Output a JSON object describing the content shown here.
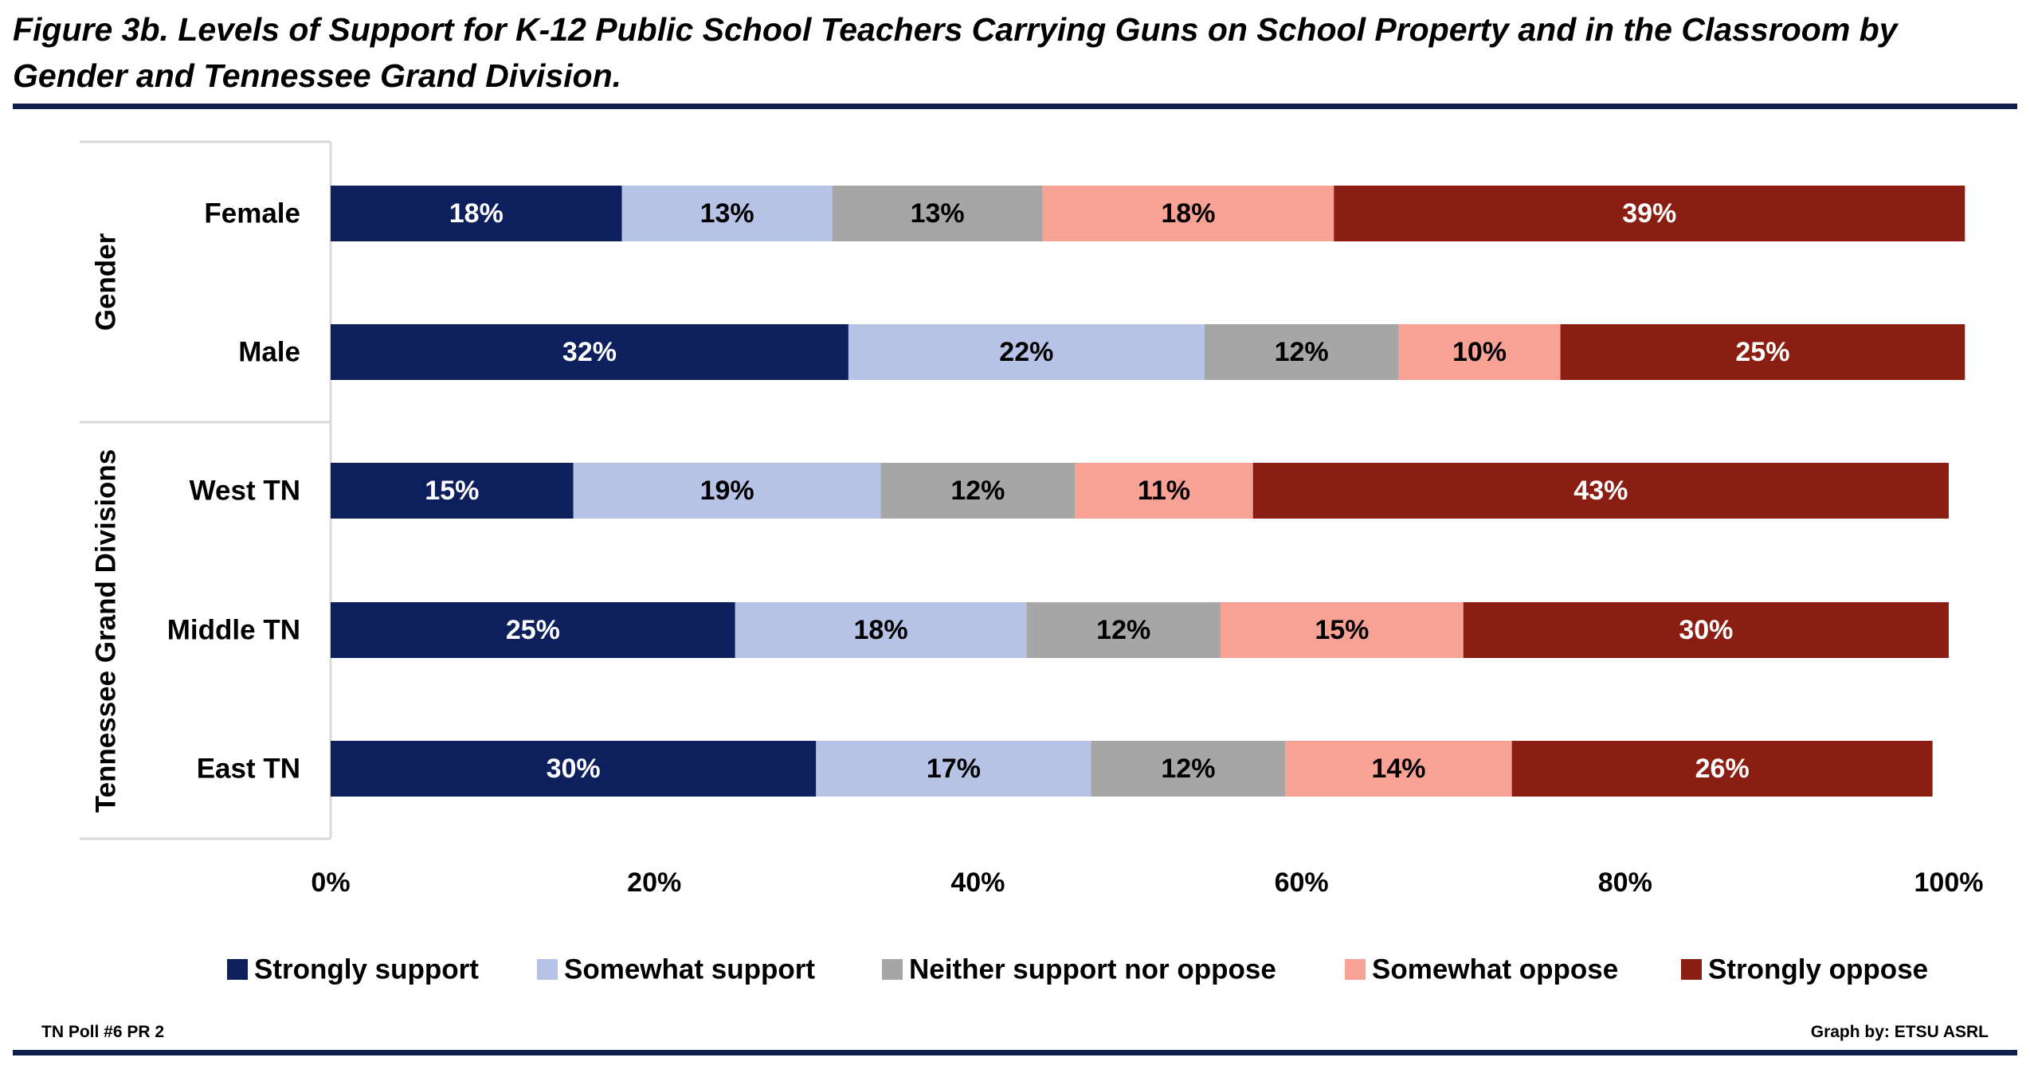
{
  "header": {
    "title": "Figure 3b. Levels of Support for K-12 Public School Teachers Carrying Guns on School Property and in the Classroom by Gender and Tennessee Grand Division."
  },
  "footer": {
    "left": "TN Poll #6 PR 2",
    "right": "Graph by: ETSU ASRL"
  },
  "chart_data": {
    "type": "bar",
    "orientation": "horizontal",
    "stacked": "percent",
    "title": "Figure 3b. Levels of Support for K-12 Public School Teachers Carrying Guns on School Property and in the Classroom by Gender and Tennessee Grand Division.",
    "groups": [
      {
        "name": "Gender",
        "categories": [
          "Female",
          "Male"
        ]
      },
      {
        "name": "Tennessee Grand Divisions",
        "categories": [
          "West TN",
          "Middle TN",
          "East TN"
        ]
      }
    ],
    "categories": [
      "Female",
      "Male",
      "West TN",
      "Middle TN",
      "East TN"
    ],
    "series": [
      {
        "name": "Strongly support",
        "color": "#0d1f5c",
        "label_color": "#ffffff",
        "values": [
          18,
          32,
          15,
          25,
          30
        ]
      },
      {
        "name": "Somewhat support",
        "color": "#b7c3e6",
        "label_color": "#000000",
        "values": [
          13,
          22,
          19,
          18,
          17
        ]
      },
      {
        "name": "Neither support nor oppose",
        "color": "#a6a6a6",
        "label_color": "#000000",
        "values": [
          13,
          12,
          12,
          12,
          12
        ]
      },
      {
        "name": "Somewhat oppose",
        "color": "#f8a195",
        "label_color": "#000000",
        "values": [
          18,
          10,
          11,
          15,
          14
        ]
      },
      {
        "name": "Strongly oppose",
        "color": "#8b1e12",
        "label_color": "#ffffff",
        "values": [
          39,
          25,
          43,
          30,
          26
        ]
      }
    ],
    "xlim": [
      0,
      100
    ],
    "xticks": [
      "0%",
      "20%",
      "40%",
      "60%",
      "80%",
      "100%"
    ],
    "xlabel": "",
    "ylabel": "",
    "grid": false,
    "legend": "bottom"
  }
}
